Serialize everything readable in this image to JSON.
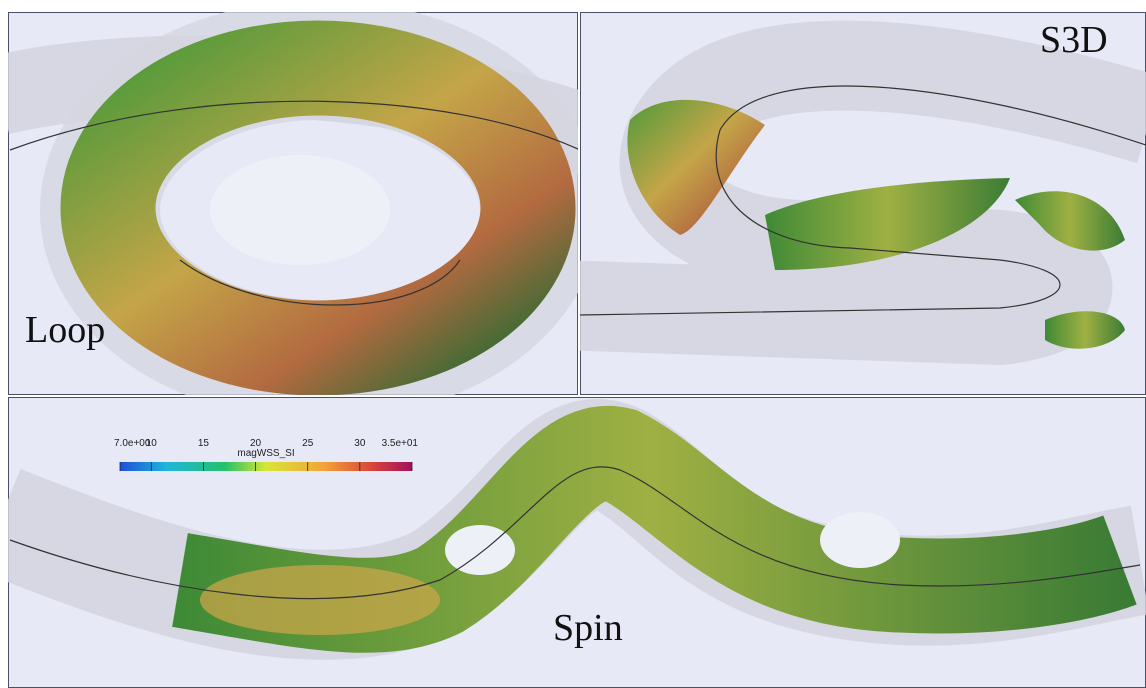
{
  "panels": [
    {
      "label": "Loop"
    },
    {
      "label": "S3D"
    },
    {
      "label": "Spin"
    }
  ],
  "colorbar": {
    "title": "magWSS_SI",
    "lim": [
      7,
      35
    ],
    "ticks": [
      {
        "value": 7,
        "label": "7.0e+00"
      },
      10,
      15,
      20,
      25,
      30,
      {
        "value": 35,
        "label": "3.5e+01"
      }
    ]
  }
}
